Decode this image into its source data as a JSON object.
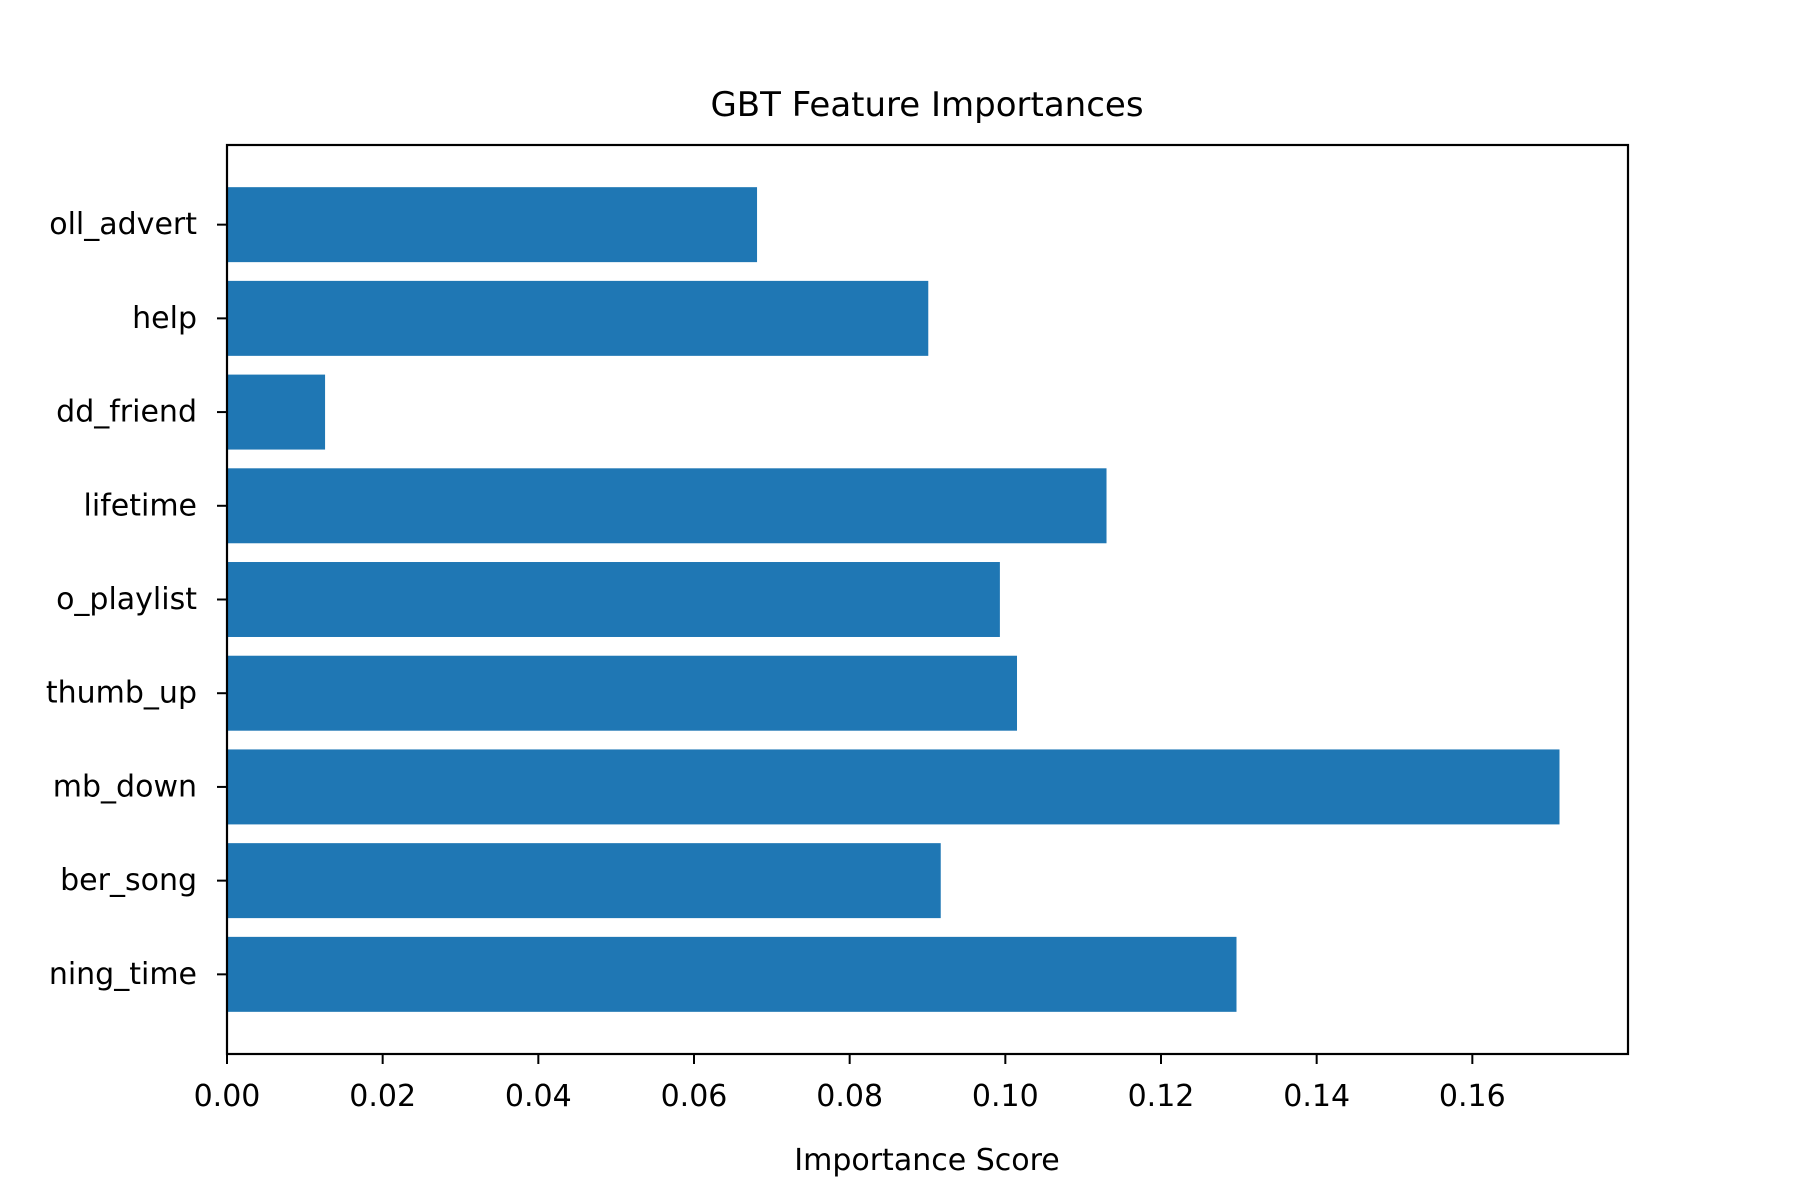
{
  "chart_data": {
    "type": "bar",
    "orientation": "horizontal",
    "title": "GBT Feature Importances",
    "xlabel": "Importance Score",
    "ylabel": "",
    "categories": [
      "oll_advert",
      "help",
      "dd_friend",
      "lifetime",
      "o_playlist",
      "thumb_up",
      "mb_down",
      "ber_song",
      "ning_time"
    ],
    "values": [
      0.0681,
      0.0901,
      0.0126,
      0.113,
      0.0993,
      0.1015,
      0.1712,
      0.0917,
      0.1297
    ],
    "xlim": [
      0.0,
      0.18
    ],
    "xticks": [
      "0.00",
      "0.02",
      "0.04",
      "0.06",
      "0.08",
      "0.10",
      "0.12",
      "0.14",
      "0.16"
    ],
    "grid": false,
    "bar_color": "#1f77b4",
    "frame_color": "#000000"
  }
}
